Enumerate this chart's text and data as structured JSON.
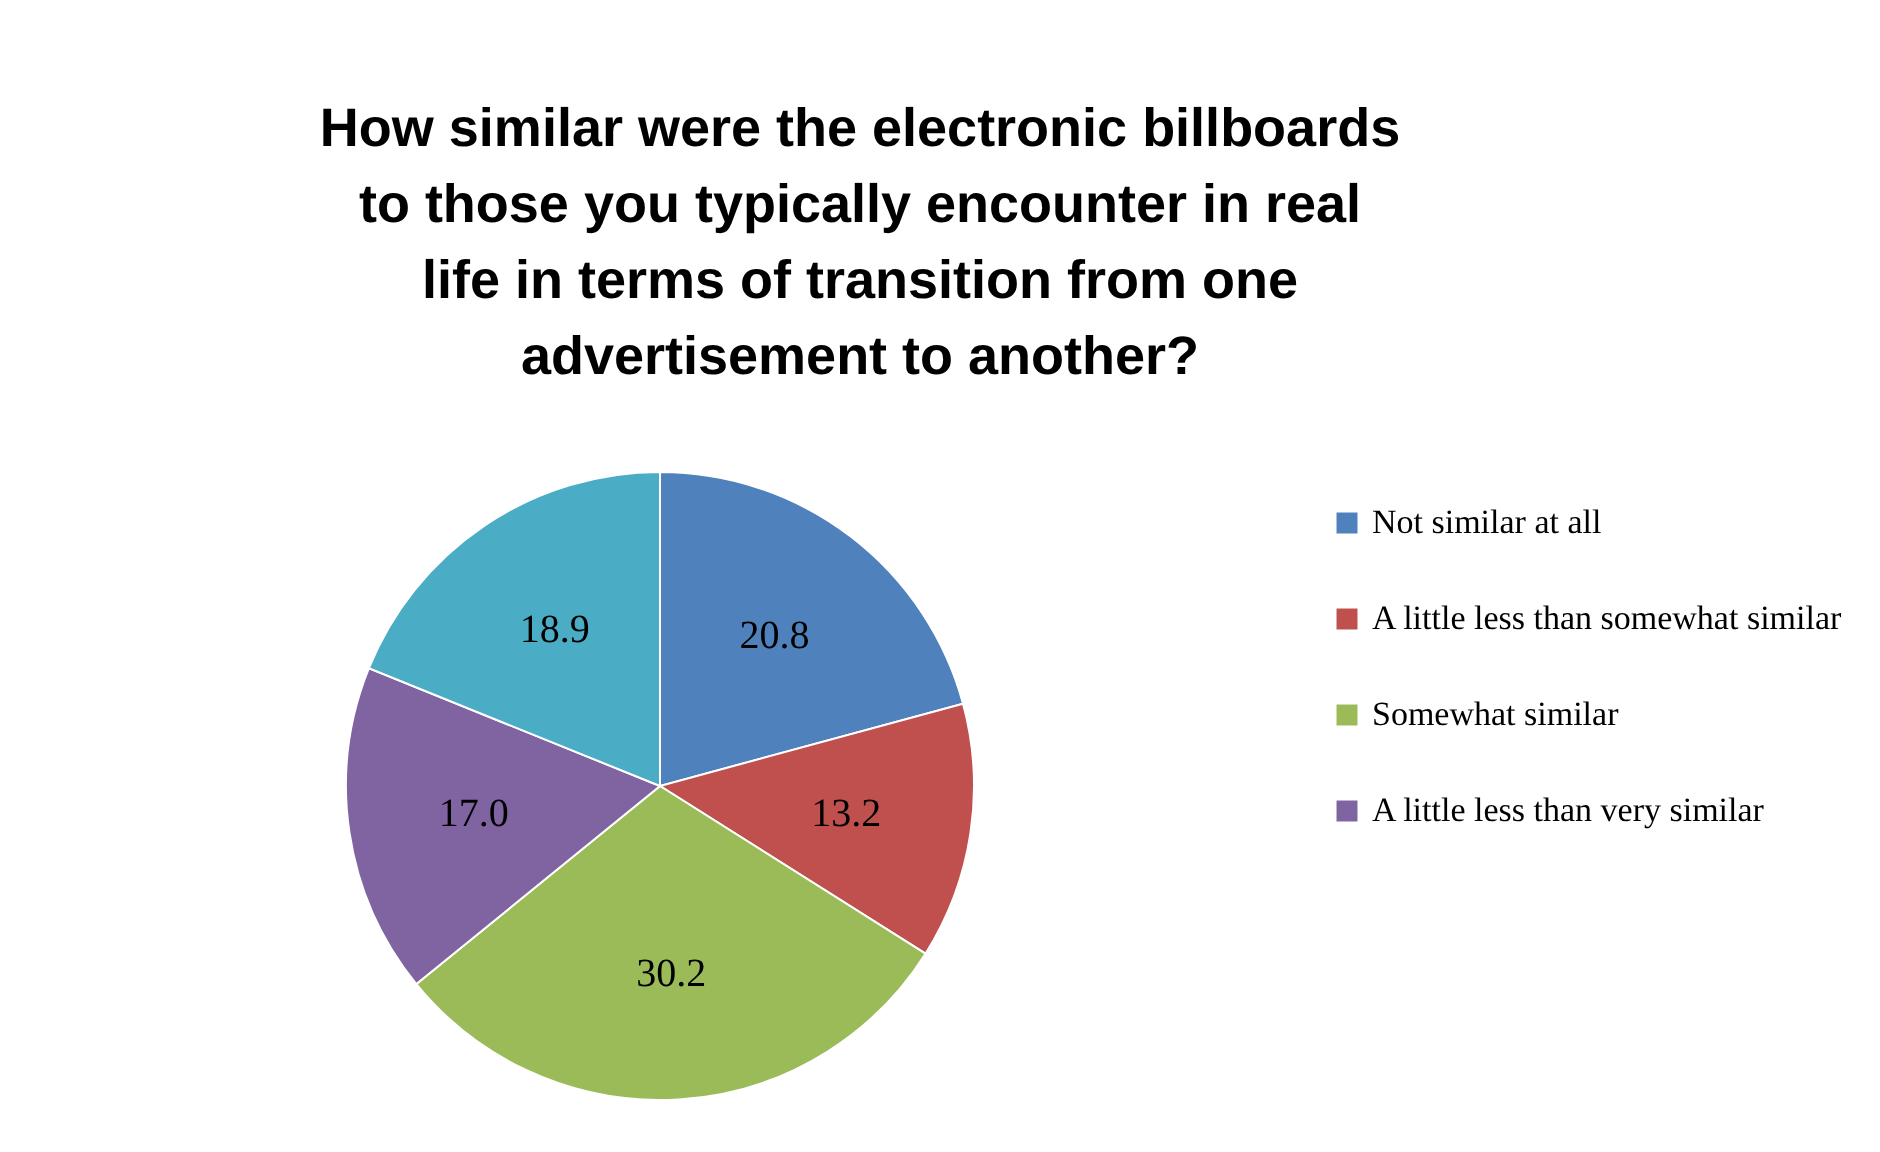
{
  "chart_data": {
    "type": "pie",
    "title": "How similar were the electronic billboards to those you typically encounter in real life in terms of transition from one advertisement to another?",
    "categories": [
      "Not similar at all",
      "A little less than somewhat similar",
      "Somewhat similar",
      "A little less than very similar",
      null
    ],
    "values": [
      20.8,
      13.2,
      30.2,
      17.0,
      18.9
    ],
    "colors": [
      "#4f81bd",
      "#c0504d",
      "#9bbb59",
      "#8064a2",
      "#4bacc6"
    ],
    "value_labels": [
      "20.8",
      "13.2",
      "30.2",
      "17.0",
      "18.9"
    ],
    "legend": "right"
  }
}
